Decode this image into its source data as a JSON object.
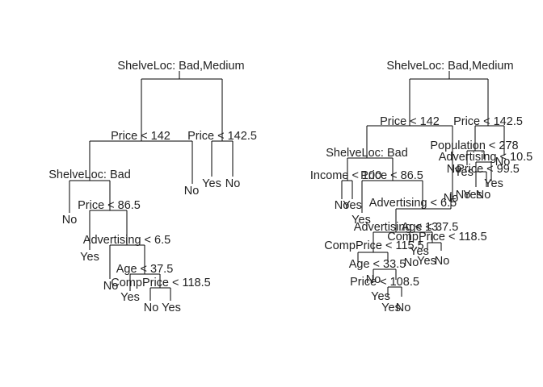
{
  "trees": [
    {
      "labels": [
        "ShelveLoc: Bad,Medium",
        "Price < 142",
        "Price < 142.5",
        "ShelveLoc: Bad",
        "No",
        "Yes",
        "No",
        "No",
        "Price < 86.5",
        "Advertising < 6.5",
        "Yes",
        "Age < 37.5",
        "No",
        "CompPrice < 118.5",
        "Yes",
        "No",
        "Yes"
      ]
    },
    {
      "labels": [
        "ShelveLoc: Bad,Medium",
        "Price < 142",
        "Price < 142.5",
        "ShelveLoc: Bad",
        "Income < 100",
        "Price < 86.5",
        "No",
        "Yes",
        "Yes",
        "Advertising < 6.5",
        "Advertising < 13",
        "Age < 37.5",
        "CompPrice < 118.5",
        "CompPrice < 115.5",
        "Yes",
        "No",
        "Yes",
        "No",
        "No",
        "Age < 33.5",
        "No",
        "Price < 108.5",
        "Yes",
        "Yes",
        "No",
        "Population < 278",
        "No",
        "Advertising < 10.5",
        "No",
        "Price < 99.5",
        "Yes",
        "Yes",
        "No",
        "Yes",
        "No"
      ]
    }
  ]
}
